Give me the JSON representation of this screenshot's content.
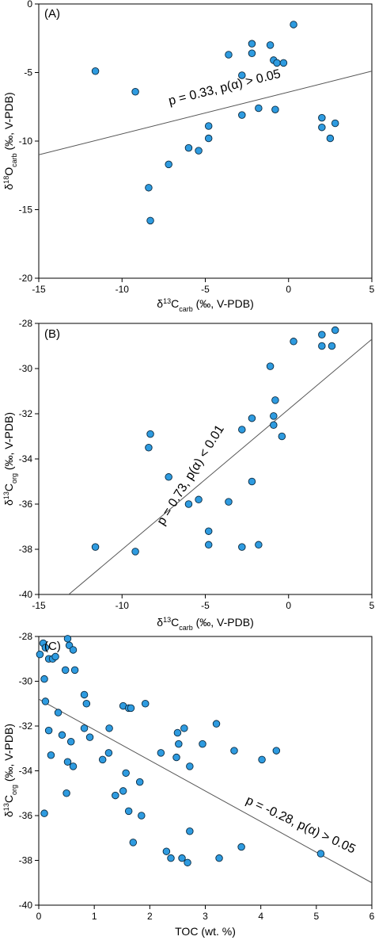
{
  "chart_data": [
    {
      "type": "scatter",
      "panel_label": "(A)",
      "xlabel": "δ13Ccarb (‰, V-PDB)",
      "ylabel": "δ18Ocarb (‰, V-PDB)",
      "xlim": [
        -15,
        5
      ],
      "ylim": [
        -20,
        0
      ],
      "xticks": [
        -15,
        -10,
        -5,
        0,
        5
      ],
      "yticks": [
        0,
        -5,
        -10,
        -15,
        -20
      ],
      "annotation": "p = 0.33, p(α) > 0.05",
      "fit_line": {
        "x": [
          -15,
          5
        ],
        "y": [
          -11.0,
          -4.9
        ]
      },
      "colors": {
        "marker": "#2e9be0",
        "marker_edge": "#0a2a40",
        "fit": "#555555"
      },
      "points": [
        {
          "x": -11.6,
          "y": -4.9
        },
        {
          "x": -9.2,
          "y": -6.4
        },
        {
          "x": -8.4,
          "y": -13.4
        },
        {
          "x": -8.3,
          "y": -15.8
        },
        {
          "x": -7.2,
          "y": -11.7
        },
        {
          "x": -6.0,
          "y": -10.5
        },
        {
          "x": -5.4,
          "y": -10.7
        },
        {
          "x": -4.8,
          "y": -9.8
        },
        {
          "x": -4.8,
          "y": -8.9
        },
        {
          "x": -3.6,
          "y": -3.7
        },
        {
          "x": -2.8,
          "y": -8.1
        },
        {
          "x": -2.8,
          "y": -5.2
        },
        {
          "x": -2.2,
          "y": -3.6
        },
        {
          "x": -2.2,
          "y": -2.9
        },
        {
          "x": -1.8,
          "y": -7.6
        },
        {
          "x": -1.1,
          "y": -3.0
        },
        {
          "x": -0.9,
          "y": -4.1
        },
        {
          "x": -0.8,
          "y": -7.7
        },
        {
          "x": -0.7,
          "y": -4.3
        },
        {
          "x": -0.3,
          "y": -4.3
        },
        {
          "x": 0.3,
          "y": -1.5
        },
        {
          "x": 2.0,
          "y": -8.3
        },
        {
          "x": 2.0,
          "y": -9.0
        },
        {
          "x": 2.5,
          "y": -9.8
        },
        {
          "x": 2.8,
          "y": -8.7
        }
      ]
    },
    {
      "type": "scatter",
      "panel_label": "(B)",
      "xlabel": "δ13Ccarb (‰, V-PDB)",
      "ylabel": "δ13Corg (‰, V-PDB)",
      "xlim": [
        -15,
        5
      ],
      "ylim": [
        -40,
        -28
      ],
      "xticks": [
        -15,
        -10,
        -5,
        0,
        5
      ],
      "yticks": [
        -28,
        -30,
        -32,
        -34,
        -36,
        -38,
        -40
      ],
      "annotation": "p = 0.73, p(α) < 0.01",
      "fit_line": {
        "x": [
          -13.2,
          5
        ],
        "y": [
          -40,
          -28.7
        ]
      },
      "colors": {
        "marker": "#2e9be0",
        "marker_edge": "#0a2a40",
        "fit": "#555555"
      },
      "points": [
        {
          "x": -11.6,
          "y": -37.9
        },
        {
          "x": -9.2,
          "y": -38.1
        },
        {
          "x": -8.4,
          "y": -33.5
        },
        {
          "x": -8.3,
          "y": -32.9
        },
        {
          "x": -7.2,
          "y": -34.8
        },
        {
          "x": -6.0,
          "y": -36.0
        },
        {
          "x": -5.4,
          "y": -35.8
        },
        {
          "x": -4.8,
          "y": -37.2
        },
        {
          "x": -4.8,
          "y": -37.8
        },
        {
          "x": -3.6,
          "y": -35.9
        },
        {
          "x": -2.8,
          "y": -37.9
        },
        {
          "x": -2.8,
          "y": -32.7
        },
        {
          "x": -2.2,
          "y": -32.2
        },
        {
          "x": -2.2,
          "y": -35.0
        },
        {
          "x": -1.8,
          "y": -37.8
        },
        {
          "x": -1.1,
          "y": -29.9
        },
        {
          "x": -0.9,
          "y": -32.1
        },
        {
          "x": -0.8,
          "y": -31.4
        },
        {
          "x": -0.9,
          "y": -32.5
        },
        {
          "x": -0.4,
          "y": -33.0
        },
        {
          "x": 0.3,
          "y": -28.8
        },
        {
          "x": 2.0,
          "y": -28.5
        },
        {
          "x": 2.0,
          "y": -29.0
        },
        {
          "x": 2.6,
          "y": -29.0
        },
        {
          "x": 2.8,
          "y": -28.3
        }
      ]
    },
    {
      "type": "scatter",
      "panel_label": "(C)",
      "xlabel": "TOC (wt. %)",
      "ylabel": "δ13Corg (‰, V-PDB)",
      "xlim": [
        0,
        6
      ],
      "ylim": [
        -40,
        -28
      ],
      "xticks": [
        0,
        1,
        2,
        3,
        4,
        5,
        6
      ],
      "yticks": [
        -28,
        -30,
        -32,
        -34,
        -36,
        -38,
        -40
      ],
      "annotation": "p = -0.28, p(α) > 0.05",
      "fit_line": {
        "x": [
          0,
          6
        ],
        "y": [
          -30.8,
          -39.0
        ]
      },
      "colors": {
        "marker": "#2e9be0",
        "marker_edge": "#0a2a40",
        "fit": "#555555"
      },
      "points": [
        {
          "x": 0.02,
          "y": -28.8
        },
        {
          "x": 0.08,
          "y": -28.3
        },
        {
          "x": 0.12,
          "y": -28.5
        },
        {
          "x": 0.18,
          "y": -29.0
        },
        {
          "x": 0.25,
          "y": -29.0
        },
        {
          "x": 0.3,
          "y": -28.9
        },
        {
          "x": 0.1,
          "y": -29.9
        },
        {
          "x": 0.12,
          "y": -30.9
        },
        {
          "x": 0.18,
          "y": -32.2
        },
        {
          "x": 0.22,
          "y": -33.3
        },
        {
          "x": 0.1,
          "y": -35.9
        },
        {
          "x": 0.35,
          "y": -31.4
        },
        {
          "x": 0.42,
          "y": -32.4
        },
        {
          "x": 0.48,
          "y": -29.5
        },
        {
          "x": 0.52,
          "y": -28.1
        },
        {
          "x": 0.55,
          "y": -28.4
        },
        {
          "x": 0.62,
          "y": -28.6
        },
        {
          "x": 0.65,
          "y": -29.5
        },
        {
          "x": 0.58,
          "y": -32.7
        },
        {
          "x": 0.52,
          "y": -33.6
        },
        {
          "x": 0.62,
          "y": -33.8
        },
        {
          "x": 0.5,
          "y": -35.0
        },
        {
          "x": 0.82,
          "y": -30.6
        },
        {
          "x": 0.86,
          "y": -31.0
        },
        {
          "x": 0.82,
          "y": -32.1
        },
        {
          "x": 0.92,
          "y": -32.5
        },
        {
          "x": 1.15,
          "y": -33.5
        },
        {
          "x": 1.27,
          "y": -32.1
        },
        {
          "x": 1.26,
          "y": -33.2
        },
        {
          "x": 1.38,
          "y": -35.1
        },
        {
          "x": 1.52,
          "y": -31.1
        },
        {
          "x": 1.62,
          "y": -31.2
        },
        {
          "x": 1.66,
          "y": -31.2
        },
        {
          "x": 1.57,
          "y": -34.1
        },
        {
          "x": 1.52,
          "y": -34.9
        },
        {
          "x": 1.62,
          "y": -35.8
        },
        {
          "x": 1.7,
          "y": -37.2
        },
        {
          "x": 1.82,
          "y": -34.5
        },
        {
          "x": 1.85,
          "y": -36.0
        },
        {
          "x": 1.92,
          "y": -31.0
        },
        {
          "x": 2.2,
          "y": -33.2
        },
        {
          "x": 2.3,
          "y": -37.6
        },
        {
          "x": 2.38,
          "y": -37.9
        },
        {
          "x": 2.5,
          "y": -32.3
        },
        {
          "x": 2.52,
          "y": -32.8
        },
        {
          "x": 2.48,
          "y": -33.4
        },
        {
          "x": 2.58,
          "y": -37.9
        },
        {
          "x": 2.68,
          "y": -38.1
        },
        {
          "x": 2.62,
          "y": -32.1
        },
        {
          "x": 2.72,
          "y": -33.8
        },
        {
          "x": 2.72,
          "y": -36.7
        },
        {
          "x": 2.95,
          "y": -32.8
        },
        {
          "x": 3.2,
          "y": -31.9
        },
        {
          "x": 3.25,
          "y": -37.9
        },
        {
          "x": 3.52,
          "y": -33.1
        },
        {
          "x": 3.65,
          "y": -37.4
        },
        {
          "x": 4.02,
          "y": -33.5
        },
        {
          "x": 4.28,
          "y": -33.1
        },
        {
          "x": 5.08,
          "y": -37.7
        }
      ]
    }
  ]
}
